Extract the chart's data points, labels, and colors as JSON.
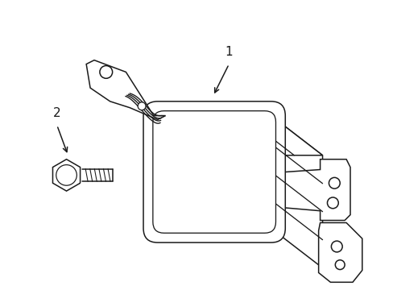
{
  "background_color": "#ffffff",
  "line_color": "#1a1a1a",
  "line_width": 1.1,
  "label1_text": "1",
  "label2_text": "2",
  "figsize": [
    4.89,
    3.6
  ],
  "dpi": 100
}
